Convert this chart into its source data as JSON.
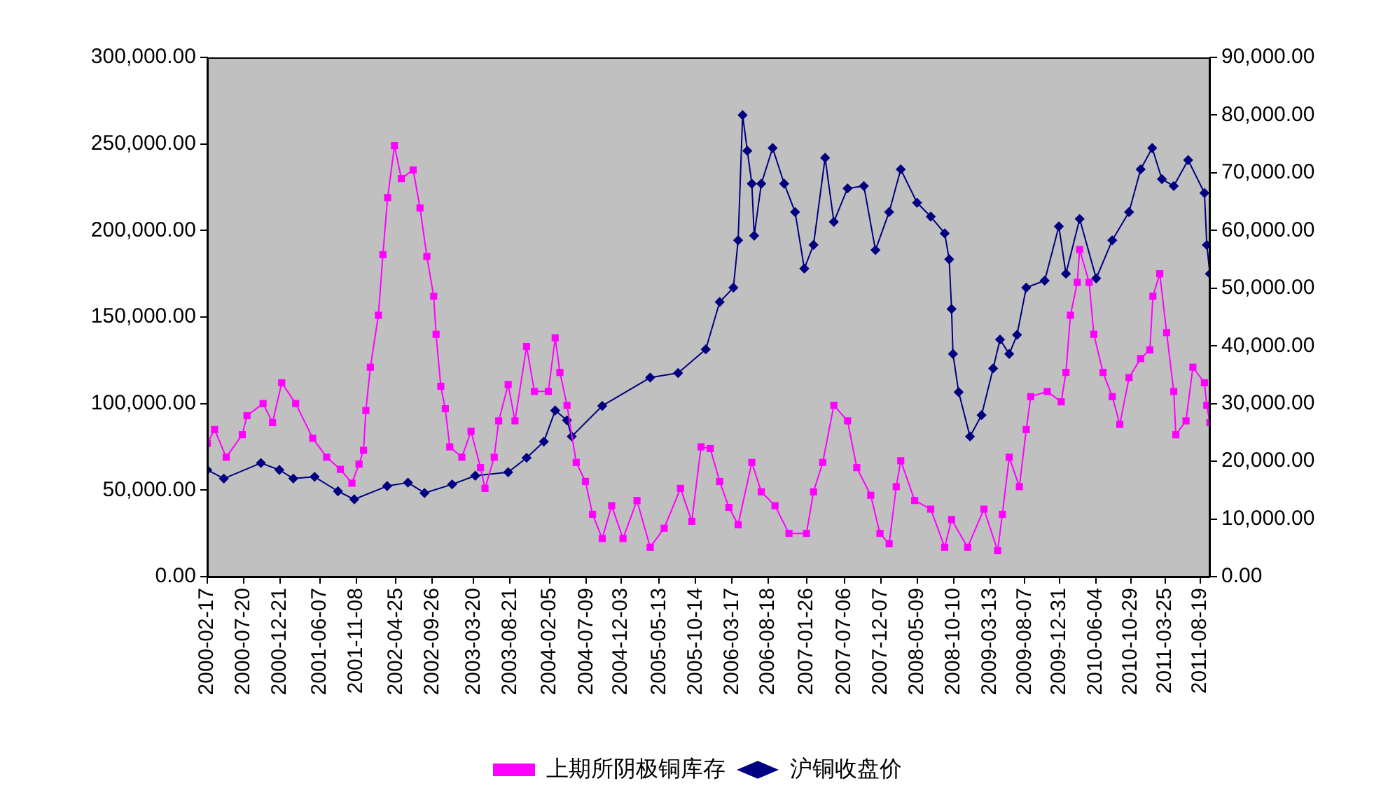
{
  "chart_data": {
    "type": "line",
    "legend": "bottom",
    "xlim": [
      "2000-02-17",
      "2011-09-30"
    ],
    "xticks": [
      "2000-02-17",
      "2000-07-20",
      "2000-12-21",
      "2001-06-07",
      "2001-11-08",
      "2002-04-25",
      "2002-09-26",
      "2003-03-20",
      "2003-08-21",
      "2004-02-05",
      "2004-07-09",
      "2004-12-03",
      "2005-05-13",
      "2005-10-14",
      "2006-03-17",
      "2006-08-18",
      "2007-01-26",
      "2007-07-06",
      "2007-12-07",
      "2008-05-09",
      "2008-10-10",
      "2009-03-13",
      "2009-08-07",
      "2009-12-31",
      "2010-06-04",
      "2010-10-29",
      "2011-03-25",
      "2011-08-19"
    ],
    "ylim": [
      0,
      300000
    ],
    "yticks": [
      {
        "value": 0,
        "label": "0.00"
      },
      {
        "value": 50000,
        "label": "50,000.00"
      },
      {
        "value": 100000,
        "label": "100,000.00"
      },
      {
        "value": 150000,
        "label": "150,000.00"
      },
      {
        "value": 200000,
        "label": "200,000.00"
      },
      {
        "value": 250000,
        "label": "250,000.00"
      },
      {
        "value": 300000,
        "label": "300,000.00"
      }
    ],
    "y2lim": [
      0,
      90000
    ],
    "y2ticks": [
      {
        "value": 0,
        "label": "0.00"
      },
      {
        "value": 10000,
        "label": "10,000.00"
      },
      {
        "value": 20000,
        "label": "20,000.00"
      },
      {
        "value": 30000,
        "label": "30,000.00"
      },
      {
        "value": 40000,
        "label": "40,000.00"
      },
      {
        "value": 50000,
        "label": "50,000.00"
      },
      {
        "value": 60000,
        "label": "60,000.00"
      },
      {
        "value": 70000,
        "label": "70,000.00"
      },
      {
        "value": 80000,
        "label": "80,000.00"
      },
      {
        "value": 90000,
        "label": "90,000.00"
      }
    ],
    "series": [
      {
        "name": "上期所阴极铜库存",
        "color": "#ff00ff",
        "marker": "square",
        "x": [
          "2000-02-17",
          "2000-03-19",
          "2000-05-07",
          "2000-07-14",
          "2000-08-03",
          "2000-10-10",
          "2000-11-19",
          "2000-12-28",
          "2001-02-25",
          "2001-05-08",
          "2001-07-06",
          "2001-09-02",
          "2001-10-21",
          "2001-11-20",
          "2001-12-09",
          "2001-12-19",
          "2002-01-07",
          "2002-02-10",
          "2002-03-01",
          "2002-03-21",
          "2002-04-19",
          "2002-05-18",
          "2002-07-07",
          "2002-08-05",
          "2002-09-03",
          "2002-10-02",
          "2002-10-12",
          "2002-11-01",
          "2002-11-20",
          "2002-12-09",
          "2003-01-29",
          "2003-03-09",
          "2003-04-18",
          "2003-05-07",
          "2003-06-15",
          "2003-07-04",
          "2003-08-13",
          "2003-09-11",
          "2003-10-30",
          "2003-12-02",
          "2004-01-30",
          "2004-02-28",
          "2004-03-19",
          "2004-04-18",
          "2004-05-27",
          "2004-07-05",
          "2004-08-04",
          "2004-09-14",
          "2004-10-24",
          "2004-12-11",
          "2005-02-08",
          "2005-04-05",
          "2005-06-03",
          "2005-08-11",
          "2005-09-28",
          "2005-11-06",
          "2005-12-15",
          "2006-01-24",
          "2006-03-04",
          "2006-04-12",
          "2006-06-09",
          "2006-07-19",
          "2006-09-15",
          "2006-11-13",
          "2007-01-26",
          "2007-02-25",
          "2007-04-05",
          "2007-05-22",
          "2007-07-19",
          "2007-08-27",
          "2007-10-25",
          "2007-12-03",
          "2008-01-11",
          "2008-02-10",
          "2008-02-29",
          "2008-04-28",
          "2008-07-05",
          "2008-09-02",
          "2008-10-01",
          "2008-12-08",
          "2009-02-15",
          "2009-04-14",
          "2009-05-04",
          "2009-06-02",
          "2009-07-15",
          "2009-08-13",
          "2009-09-01",
          "2009-11-10",
          "2010-01-08",
          "2010-01-28",
          "2010-02-16",
          "2010-03-17",
          "2010-03-27",
          "2010-05-06",
          "2010-05-26",
          "2010-07-04",
          "2010-08-12",
          "2010-09-13",
          "2010-10-22",
          "2010-12-10",
          "2011-01-18",
          "2011-01-31",
          "2011-03-01",
          "2011-03-30",
          "2011-04-29",
          "2011-05-08",
          "2011-06-20",
          "2011-07-19",
          "2011-09-06",
          "2011-09-16",
          "2011-09-29"
        ],
        "values": [
          77000,
          85000,
          69000,
          82000,
          93000,
          100000,
          89000,
          112000,
          100000,
          80000,
          69000,
          62000,
          54000,
          65000,
          73000,
          96000,
          121000,
          151000,
          186000,
          219000,
          249000,
          230000,
          235000,
          213000,
          185000,
          162000,
          140000,
          110000,
          97000,
          75000,
          69000,
          84000,
          63000,
          51000,
          69000,
          90000,
          111000,
          90000,
          133000,
          107000,
          107000,
          138000,
          118000,
          99000,
          66000,
          55000,
          36000,
          22000,
          41000,
          22000,
          44000,
          17000,
          28000,
          51000,
          32000,
          75000,
          74000,
          55000,
          40000,
          30000,
          66000,
          49000,
          41000,
          25000,
          25000,
          49000,
          66000,
          99000,
          90000,
          63000,
          47000,
          25000,
          19000,
          52000,
          67000,
          44000,
          39000,
          17000,
          33000,
          17000,
          39000,
          15000,
          36000,
          69000,
          52000,
          85000,
          104000,
          107000,
          101000,
          118000,
          151000,
          170000,
          189000,
          170000,
          140000,
          118000,
          104000,
          88000,
          115000,
          126000,
          131000,
          162000,
          175000,
          141000,
          107000,
          82000,
          90000,
          121000,
          112000,
          99000,
          89000
        ]
      },
      {
        "name": "沪铜收盘价",
        "color": "#000080",
        "marker": "diamond",
        "axis": "y2",
        "x": [
          "2000-02-17",
          "2000-04-27",
          "2000-10-01",
          "2000-12-18",
          "2001-02-15",
          "2001-05-16",
          "2001-08-23",
          "2001-10-31",
          "2002-03-19",
          "2002-06-15",
          "2002-08-24",
          "2002-12-19",
          "2003-03-27",
          "2003-08-13",
          "2003-10-30",
          "2004-01-11",
          "2004-02-28",
          "2004-04-18",
          "2004-05-08",
          "2004-09-14",
          "2005-04-05",
          "2005-08-01",
          "2005-11-26",
          "2006-01-24",
          "2006-03-23",
          "2006-04-12",
          "2006-05-01",
          "2006-05-21",
          "2006-06-09",
          "2006-06-19",
          "2006-07-19",
          "2006-09-05",
          "2006-10-24",
          "2006-12-09",
          "2007-01-17",
          "2007-02-25",
          "2007-04-15",
          "2007-05-22",
          "2007-07-19",
          "2007-09-26",
          "2007-11-14",
          "2008-01-11",
          "2008-02-29",
          "2008-05-08",
          "2008-07-05",
          "2008-09-02",
          "2008-09-21",
          "2008-10-01",
          "2008-10-07",
          "2008-10-31",
          "2008-12-18",
          "2009-02-05",
          "2009-03-26",
          "2009-04-24",
          "2009-06-02",
          "2009-07-05",
          "2009-08-13",
          "2009-10-30",
          "2009-12-29",
          "2010-01-28",
          "2010-03-27",
          "2010-06-05",
          "2010-08-12",
          "2010-10-22",
          "2010-12-10",
          "2011-01-28",
          "2011-03-10",
          "2011-04-29",
          "2011-06-29",
          "2011-09-06",
          "2011-09-16",
          "2011-09-29"
        ],
        "values": [
          18500,
          17000,
          19700,
          18500,
          17000,
          17300,
          14800,
          13400,
          15700,
          16300,
          14500,
          16000,
          17500,
          18100,
          20600,
          23400,
          28800,
          27100,
          24300,
          29600,
          34500,
          35300,
          39400,
          47600,
          50100,
          58300,
          80000,
          73800,
          68100,
          59100,
          68100,
          74300,
          68100,
          63200,
          53400,
          57500,
          72600,
          61500,
          67300,
          67700,
          56600,
          63200,
          70600,
          64800,
          62400,
          59500,
          55000,
          46400,
          38600,
          32000,
          24300,
          28000,
          36100,
          41100,
          38600,
          41900,
          50100,
          51300,
          60700,
          52500,
          62000,
          51700,
          58300,
          63200,
          70600,
          74300,
          68900,
          67700,
          72200,
          66500,
          57500,
          52500
        ]
      }
    ]
  }
}
